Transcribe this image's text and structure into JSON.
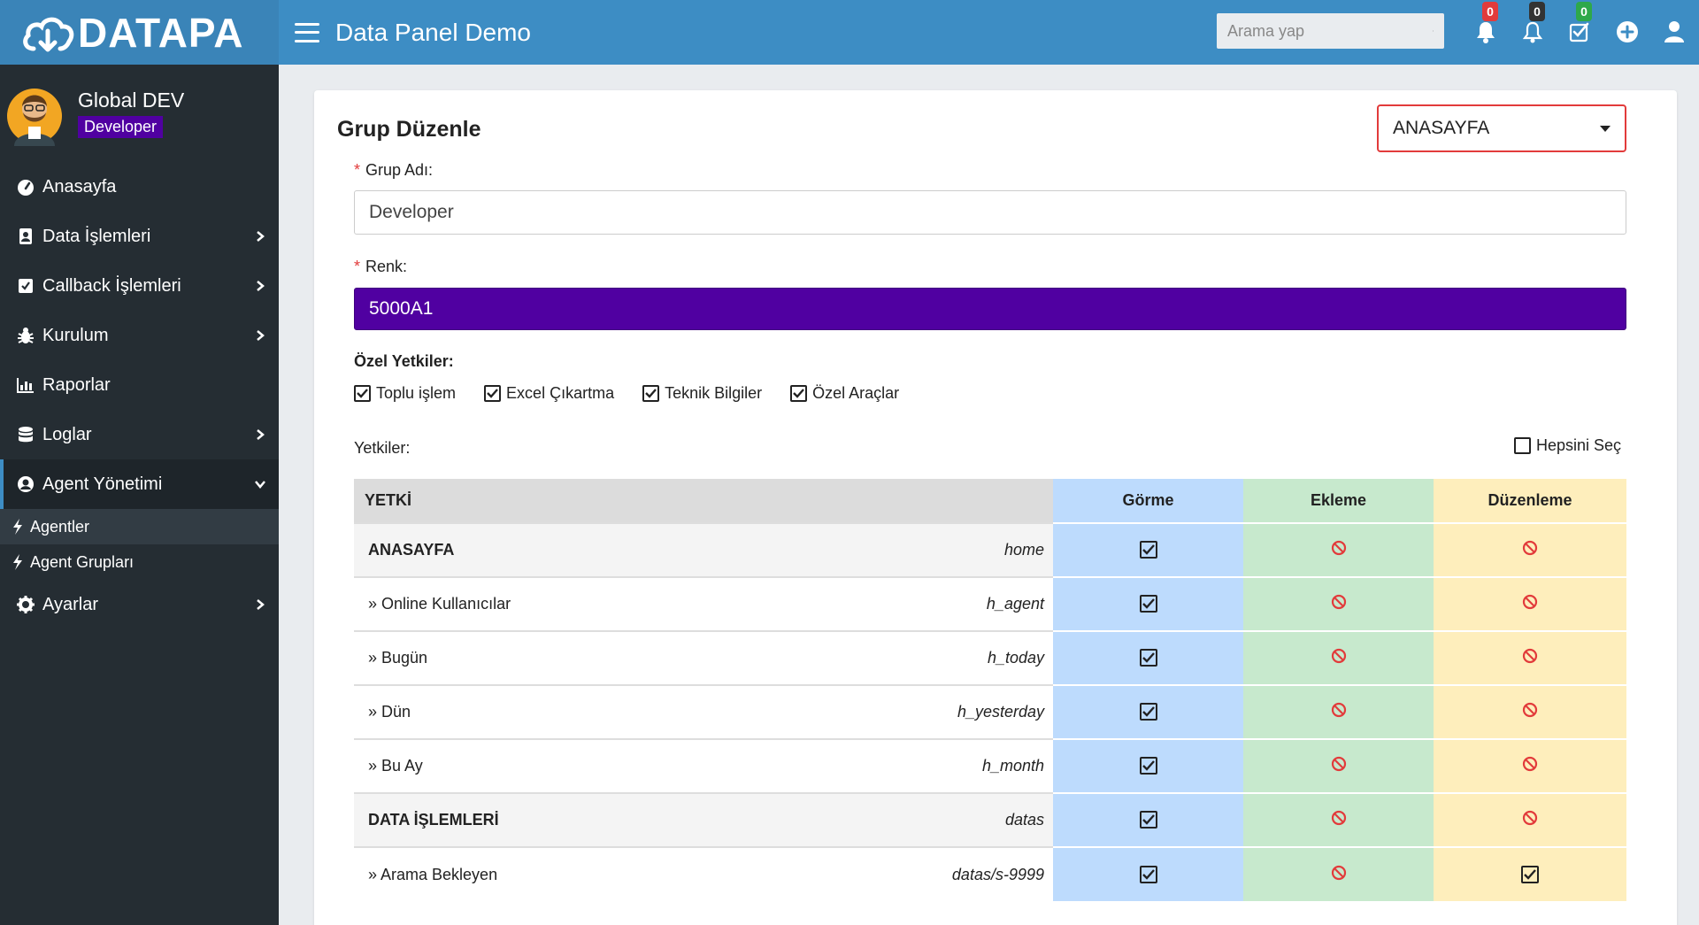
{
  "topbar": {
    "logo_text": "DATAPA",
    "app_title": "Data Panel Demo",
    "search_placeholder": "Arama yap",
    "badges": [
      {
        "icon": "bell-icon",
        "count": "0",
        "color": "#e23b3b"
      },
      {
        "icon": "bell-outline-icon",
        "count": "0",
        "color": "#333333"
      },
      {
        "icon": "checkbox-list-icon",
        "count": "0",
        "color": "#2ea84a"
      }
    ]
  },
  "sidebar": {
    "user_name": "Global DEV",
    "user_role": "Developer",
    "items": [
      {
        "label": "Anasayfa",
        "icon": "dashboard-icon",
        "has_children": false
      },
      {
        "label": "Data İşlemleri",
        "icon": "contact-book-icon",
        "has_children": true
      },
      {
        "label": "Callback İşlemleri",
        "icon": "callback-icon",
        "has_children": true
      },
      {
        "label": "Kurulum",
        "icon": "bug-icon",
        "has_children": true
      },
      {
        "label": "Raporlar",
        "icon": "chart-icon",
        "has_children": false
      },
      {
        "label": "Loglar",
        "icon": "database-icon",
        "has_children": true
      },
      {
        "label": "Agent Yönetimi",
        "icon": "user-circle-icon",
        "has_children": true,
        "expanded": true
      }
    ],
    "sub_items": [
      {
        "label": "Agentler",
        "active": true
      },
      {
        "label": "Agent Grupları",
        "active": false
      }
    ],
    "last_item": {
      "label": "Ayarlar",
      "icon": "gear-icon"
    }
  },
  "form": {
    "title": "Grup Düzenle",
    "page_select": "ANASAYFA",
    "group_name_label": "Grup Adı:",
    "group_name_value": "Developer",
    "color_label": "Renk:",
    "color_value": "5000A1",
    "color_hex": "#5000A1",
    "special_label": "Özel Yetkiler:",
    "special_perms": [
      {
        "label": "Toplu işlem",
        "checked": true
      },
      {
        "label": "Excel Çıkartma",
        "checked": true
      },
      {
        "label": "Teknik Bilgiler",
        "checked": true
      },
      {
        "label": "Özel Araçlar",
        "checked": true
      }
    ],
    "perms_label": "Yetkiler:",
    "select_all_label": "Hepsini Seç"
  },
  "table": {
    "headers": {
      "name": "YETKİ",
      "gorme": "Görme",
      "ekleme": "Ekleme",
      "duzenleme": "Düzenleme"
    },
    "rows": [
      {
        "name": "ANASAYFA",
        "key": "home",
        "parent": true,
        "gorme": true,
        "ekleme": false,
        "duzenleme": false
      },
      {
        "name": "» Online Kullanıcılar",
        "key": "h_agent",
        "parent": false,
        "gorme": true,
        "ekleme": false,
        "duzenleme": false
      },
      {
        "name": "» Bugün",
        "key": "h_today",
        "parent": false,
        "gorme": true,
        "ekleme": false,
        "duzenleme": false
      },
      {
        "name": "» Dün",
        "key": "h_yesterday",
        "parent": false,
        "gorme": true,
        "ekleme": false,
        "duzenleme": false
      },
      {
        "name": "» Bu Ay",
        "key": "h_month",
        "parent": false,
        "gorme": true,
        "ekleme": false,
        "duzenleme": false
      },
      {
        "name": "DATA İŞLEMLERİ",
        "key": "datas",
        "parent": true,
        "gorme": true,
        "ekleme": false,
        "duzenleme": false
      },
      {
        "name": "» Arama Bekleyen",
        "key": "datas/s-9999",
        "parent": false,
        "gorme": true,
        "ekleme": false,
        "duzenleme": true
      }
    ]
  }
}
